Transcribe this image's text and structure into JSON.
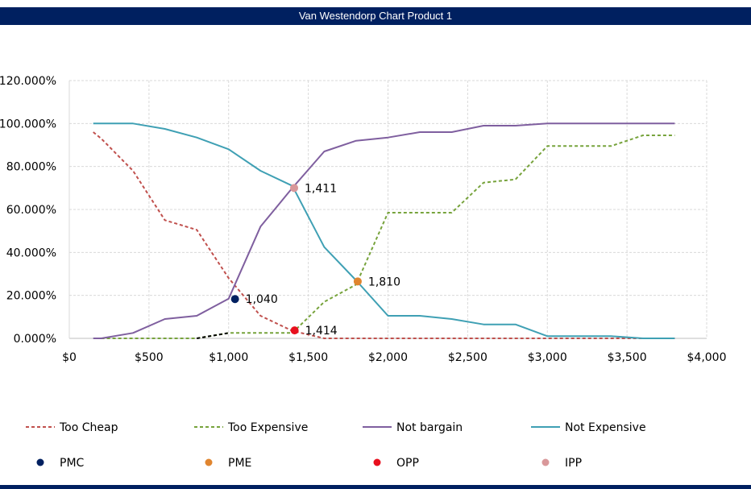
{
  "title": "Van Westendorp Chart Product 1",
  "chart_data": {
    "type": "line",
    "title": "Van Westendorp Chart Product 1",
    "xlabel": "",
    "ylabel": "",
    "xlim": [
      0,
      4000
    ],
    "ylim": [
      0,
      120
    ],
    "grid": true,
    "legend_position": "bottom",
    "x_ticks": [
      0,
      500,
      1000,
      1500,
      2000,
      2500,
      3000,
      3500,
      4000
    ],
    "x_tick_labels": [
      "$0",
      "$500",
      "$1,000",
      "$1,500",
      "$2,000",
      "$2,500",
      "$3,000",
      "$3,500",
      "$4,000"
    ],
    "y_ticks": [
      0,
      20,
      40,
      60,
      80,
      100,
      120
    ],
    "y_tick_labels": [
      "0.000%",
      "20.000%",
      "40.000%",
      "60.000%",
      "80.000%",
      "100.000%",
      "120.000%"
    ],
    "series": [
      {
        "name": "Too Cheap",
        "color": "#C0504D",
        "dash": true,
        "x": [
          150,
          200,
          400,
          600,
          800,
          1000,
          1200,
          1400,
          1600,
          1800,
          2000,
          2200,
          2400,
          2600,
          2800,
          3000,
          3200,
          3400,
          3600,
          3800
        ],
        "values": [
          96,
          93,
          78,
          55,
          50.5,
          28,
          10.5,
          3.5,
          0,
          0,
          0,
          0,
          0,
          0,
          0,
          0,
          0,
          0,
          0,
          0
        ]
      },
      {
        "name": "Too Expensive",
        "color": "#77A33C",
        "dash": true,
        "x": [
          200,
          400,
          600,
          800,
          1000,
          1200,
          1400,
          1600,
          1800,
          2000,
          2200,
          2400,
          2600,
          2800,
          3000,
          3200,
          3400,
          3600,
          3800
        ],
        "values": [
          0,
          0,
          0,
          0,
          2.5,
          2.5,
          2.5,
          17,
          25,
          58.5,
          58.5,
          58.5,
          72.5,
          74,
          89.5,
          89.5,
          89.5,
          94.5,
          94.5
        ],
        "highlight_segment": {
          "from": 800,
          "to": 1000,
          "color": "#000000"
        }
      },
      {
        "name": "Not bargain",
        "color": "#7F5F9F",
        "dash": false,
        "x": [
          150,
          200,
          400,
          600,
          800,
          1000,
          1200,
          1400,
          1600,
          1800,
          2000,
          2200,
          2400,
          2600,
          2800,
          3000,
          3200,
          3400,
          3600,
          3800
        ],
        "values": [
          0,
          0,
          2.5,
          9,
          10.5,
          18.5,
          52,
          70,
          87,
          92,
          93.5,
          96,
          96,
          99,
          99,
          100,
          100,
          100,
          100,
          100
        ]
      },
      {
        "name": "Not Expensive",
        "color": "#3FA0B4",
        "dash": false,
        "x": [
          150,
          400,
          600,
          800,
          1000,
          1200,
          1400,
          1600,
          1800,
          2000,
          2200,
          2400,
          2600,
          2800,
          3000,
          3200,
          3400,
          3600,
          3800
        ],
        "values": [
          100,
          100,
          97.5,
          93.5,
          88,
          78,
          71,
          42.5,
          27,
          10.5,
          10.5,
          9,
          6.5,
          6.5,
          1,
          1,
          1,
          0,
          0
        ]
      }
    ],
    "points": [
      {
        "name": "PMC",
        "color": "#002060",
        "x": 1040,
        "y": 18.3,
        "label": "1,040"
      },
      {
        "name": "PME",
        "color": "#E0852F",
        "x": 1810,
        "y": 26.5,
        "label": "1,810"
      },
      {
        "name": "OPP",
        "color": "#E8101E",
        "x": 1414,
        "y": 3.7,
        "label": "1,414"
      },
      {
        "name": "IPP",
        "color": "#D9989A",
        "x": 1411,
        "y": 70,
        "label": "1,411"
      }
    ]
  }
}
